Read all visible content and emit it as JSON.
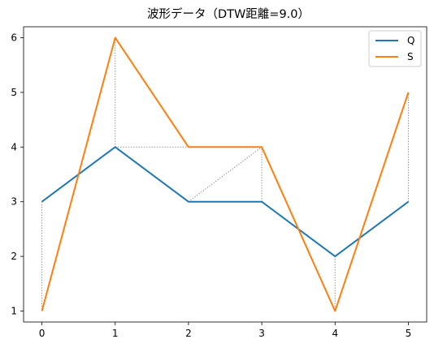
{
  "chart_data": {
    "type": "line",
    "title": "波形データ（DTW距離=9.0）",
    "xlabel": "",
    "ylabel": "",
    "x": [
      0,
      1,
      2,
      3,
      4,
      5
    ],
    "xlim": [
      -0.25,
      5.25
    ],
    "ylim": [
      0.8,
      6.2
    ],
    "xticks": [
      0,
      1,
      2,
      3,
      4,
      5
    ],
    "yticks": [
      1,
      2,
      3,
      4,
      5,
      6
    ],
    "grid": false,
    "legend_position": "top-right",
    "series": [
      {
        "name": "Q",
        "color": "#1f77b4",
        "values": [
          3,
          4,
          3,
          3,
          2,
          3
        ]
      },
      {
        "name": "S",
        "color": "#ff7f0e",
        "values": [
          1,
          6,
          4,
          4,
          1,
          5
        ]
      }
    ],
    "alignment_path": [
      [
        0,
        0
      ],
      [
        1,
        1
      ],
      [
        1,
        2
      ],
      [
        2,
        3
      ],
      [
        3,
        3
      ],
      [
        4,
        4
      ],
      [
        5,
        5
      ]
    ],
    "alignment_style": {
      "color": "#808080",
      "linestyle": "dotted"
    }
  }
}
